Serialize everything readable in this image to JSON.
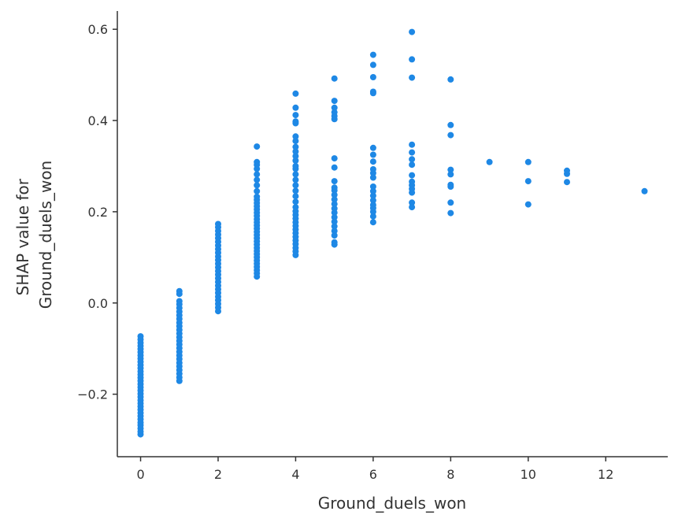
{
  "chart_data": {
    "type": "scatter",
    "xlabel": "Ground_duels_won",
    "ylabel_lines": [
      "SHAP value for",
      "Ground_duels_won"
    ],
    "xlim": [
      -0.6,
      13.6
    ],
    "ylim": [
      -0.337,
      0.64
    ],
    "xticks": [
      0,
      2,
      4,
      6,
      8,
      10,
      12
    ],
    "xtick_labels": [
      "0",
      "2",
      "4",
      "6",
      "8",
      "10",
      "12"
    ],
    "yticks": [
      -0.2,
      0.0,
      0.2,
      0.4,
      0.6
    ],
    "ytick_labels": [
      "−0.2",
      "0.0",
      "0.2",
      "0.4",
      "0.6"
    ],
    "grid": false,
    "color": "#1e88e5",
    "points": [
      [
        0,
        -0.288
      ],
      [
        0,
        -0.282
      ],
      [
        0,
        -0.275
      ],
      [
        0,
        -0.268
      ],
      [
        0,
        -0.262
      ],
      [
        0,
        -0.255
      ],
      [
        0,
        -0.248
      ],
      [
        0,
        -0.241
      ],
      [
        0,
        -0.234
      ],
      [
        0,
        -0.227
      ],
      [
        0,
        -0.22
      ],
      [
        0,
        -0.213
      ],
      [
        0,
        -0.206
      ],
      [
        0,
        -0.199
      ],
      [
        0,
        -0.192
      ],
      [
        0,
        -0.185
      ],
      [
        0,
        -0.178
      ],
      [
        0,
        -0.171
      ],
      [
        0,
        -0.164
      ],
      [
        0,
        -0.157
      ],
      [
        0,
        -0.15
      ],
      [
        0,
        -0.143
      ],
      [
        0,
        -0.136
      ],
      [
        0,
        -0.129
      ],
      [
        0,
        -0.122
      ],
      [
        0,
        -0.115
      ],
      [
        0,
        -0.108
      ],
      [
        0,
        -0.101
      ],
      [
        0,
        -0.094
      ],
      [
        0,
        -0.087
      ],
      [
        0,
        -0.08
      ],
      [
        0,
        -0.073
      ],
      [
        1,
        -0.171
      ],
      [
        1,
        -0.163
      ],
      [
        1,
        -0.155
      ],
      [
        1,
        -0.147
      ],
      [
        1,
        -0.139
      ],
      [
        1,
        -0.131
      ],
      [
        1,
        -0.123
      ],
      [
        1,
        -0.115
      ],
      [
        1,
        -0.107
      ],
      [
        1,
        -0.099
      ],
      [
        1,
        -0.091
      ],
      [
        1,
        -0.083
      ],
      [
        1,
        -0.075
      ],
      [
        1,
        -0.067
      ],
      [
        1,
        -0.059
      ],
      [
        1,
        -0.051
      ],
      [
        1,
        -0.043
      ],
      [
        1,
        -0.035
      ],
      [
        1,
        -0.027
      ],
      [
        1,
        -0.019
      ],
      [
        1,
        -0.011
      ],
      [
        1,
        -0.003
      ],
      [
        1,
        0.004
      ],
      [
        1,
        0.02
      ],
      [
        1,
        0.026
      ],
      [
        2,
        -0.018
      ],
      [
        2,
        -0.01
      ],
      [
        2,
        -0.002
      ],
      [
        2,
        0.006
      ],
      [
        2,
        0.014
      ],
      [
        2,
        0.022
      ],
      [
        2,
        0.03
      ],
      [
        2,
        0.038
      ],
      [
        2,
        0.046
      ],
      [
        2,
        0.054
      ],
      [
        2,
        0.062
      ],
      [
        2,
        0.07
      ],
      [
        2,
        0.078
      ],
      [
        2,
        0.086
      ],
      [
        2,
        0.094
      ],
      [
        2,
        0.102
      ],
      [
        2,
        0.11
      ],
      [
        2,
        0.118
      ],
      [
        2,
        0.126
      ],
      [
        2,
        0.134
      ],
      [
        2,
        0.142
      ],
      [
        2,
        0.15
      ],
      [
        2,
        0.158
      ],
      [
        2,
        0.166
      ],
      [
        2,
        0.173
      ],
      [
        3,
        0.058
      ],
      [
        3,
        0.065
      ],
      [
        3,
        0.072
      ],
      [
        3,
        0.079
      ],
      [
        3,
        0.086
      ],
      [
        3,
        0.093
      ],
      [
        3,
        0.1
      ],
      [
        3,
        0.107
      ],
      [
        3,
        0.114
      ],
      [
        3,
        0.121
      ],
      [
        3,
        0.128
      ],
      [
        3,
        0.135
      ],
      [
        3,
        0.142
      ],
      [
        3,
        0.149
      ],
      [
        3,
        0.156
      ],
      [
        3,
        0.163
      ],
      [
        3,
        0.17
      ],
      [
        3,
        0.177
      ],
      [
        3,
        0.184
      ],
      [
        3,
        0.191
      ],
      [
        3,
        0.198
      ],
      [
        3,
        0.205
      ],
      [
        3,
        0.212
      ],
      [
        3,
        0.219
      ],
      [
        3,
        0.226
      ],
      [
        3,
        0.233
      ],
      [
        3,
        0.245
      ],
      [
        3,
        0.258
      ],
      [
        3,
        0.27
      ],
      [
        3,
        0.282
      ],
      [
        3,
        0.294
      ],
      [
        3,
        0.303
      ],
      [
        3,
        0.309
      ],
      [
        3,
        0.343
      ],
      [
        4,
        0.105
      ],
      [
        4,
        0.113
      ],
      [
        4,
        0.121
      ],
      [
        4,
        0.129
      ],
      [
        4,
        0.137
      ],
      [
        4,
        0.145
      ],
      [
        4,
        0.153
      ],
      [
        4,
        0.161
      ],
      [
        4,
        0.169
      ],
      [
        4,
        0.177
      ],
      [
        4,
        0.185
      ],
      [
        4,
        0.193
      ],
      [
        4,
        0.201
      ],
      [
        4,
        0.21
      ],
      [
        4,
        0.222
      ],
      [
        4,
        0.234
      ],
      [
        4,
        0.246
      ],
      [
        4,
        0.258
      ],
      [
        4,
        0.27
      ],
      [
        4,
        0.282
      ],
      [
        4,
        0.294
      ],
      [
        4,
        0.3
      ],
      [
        4,
        0.312
      ],
      [
        4,
        0.322
      ],
      [
        4,
        0.332
      ],
      [
        4,
        0.342
      ],
      [
        4,
        0.355
      ],
      [
        4,
        0.365
      ],
      [
        4,
        0.394
      ],
      [
        4,
        0.398
      ],
      [
        4,
        0.412
      ],
      [
        4,
        0.428
      ],
      [
        4,
        0.459
      ],
      [
        5,
        0.128
      ],
      [
        5,
        0.133
      ],
      [
        5,
        0.148
      ],
      [
        5,
        0.158
      ],
      [
        5,
        0.168
      ],
      [
        5,
        0.178
      ],
      [
        5,
        0.188
      ],
      [
        5,
        0.198
      ],
      [
        5,
        0.207
      ],
      [
        5,
        0.217
      ],
      [
        5,
        0.227
      ],
      [
        5,
        0.237
      ],
      [
        5,
        0.247
      ],
      [
        5,
        0.253
      ],
      [
        5,
        0.267
      ],
      [
        5,
        0.297
      ],
      [
        5,
        0.317
      ],
      [
        5,
        0.403
      ],
      [
        5,
        0.41
      ],
      [
        5,
        0.418
      ],
      [
        5,
        0.428
      ],
      [
        5,
        0.443
      ],
      [
        5,
        0.492
      ],
      [
        6,
        0.177
      ],
      [
        6,
        0.19
      ],
      [
        6,
        0.2
      ],
      [
        6,
        0.208
      ],
      [
        6,
        0.215
      ],
      [
        6,
        0.225
      ],
      [
        6,
        0.235
      ],
      [
        6,
        0.245
      ],
      [
        6,
        0.255
      ],
      [
        6,
        0.275
      ],
      [
        6,
        0.285
      ],
      [
        6,
        0.293
      ],
      [
        6,
        0.31
      ],
      [
        6,
        0.325
      ],
      [
        6,
        0.34
      ],
      [
        6,
        0.46
      ],
      [
        6,
        0.463
      ],
      [
        6,
        0.495
      ],
      [
        6,
        0.522
      ],
      [
        6,
        0.544
      ],
      [
        7,
        0.21
      ],
      [
        7,
        0.22
      ],
      [
        7,
        0.242
      ],
      [
        7,
        0.25
      ],
      [
        7,
        0.258
      ],
      [
        7,
        0.266
      ],
      [
        7,
        0.28
      ],
      [
        7,
        0.303
      ],
      [
        7,
        0.315
      ],
      [
        7,
        0.33
      ],
      [
        7,
        0.347
      ],
      [
        7,
        0.494
      ],
      [
        7,
        0.534
      ],
      [
        7,
        0.594
      ],
      [
        8,
        0.197
      ],
      [
        8,
        0.22
      ],
      [
        8,
        0.255
      ],
      [
        8,
        0.259
      ],
      [
        8,
        0.282
      ],
      [
        8,
        0.292
      ],
      [
        8,
        0.368
      ],
      [
        8,
        0.39
      ],
      [
        8,
        0.49
      ],
      [
        9,
        0.309
      ],
      [
        10,
        0.216
      ],
      [
        10,
        0.267
      ],
      [
        10,
        0.309
      ],
      [
        11,
        0.265
      ],
      [
        11,
        0.283
      ],
      [
        11,
        0.29
      ],
      [
        13,
        0.245
      ]
    ]
  }
}
